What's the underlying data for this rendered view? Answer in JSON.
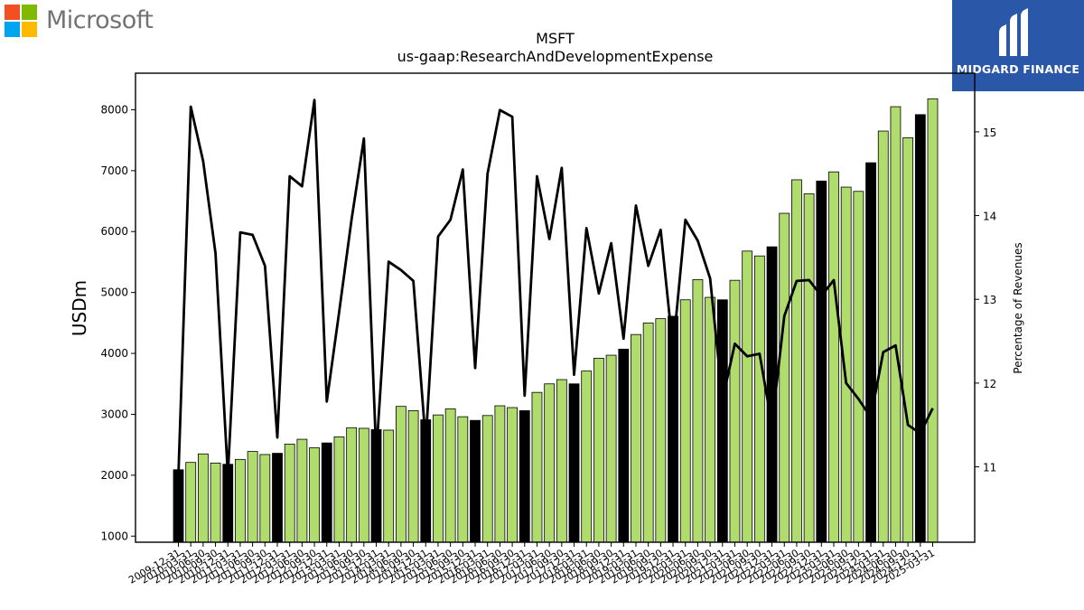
{
  "branding": {
    "left_logo_text": "Microsoft",
    "left_logo_colors": [
      "#f25022",
      "#7fba00",
      "#00a4ef",
      "#ffb900"
    ],
    "right_logo_text": "MIDGARD FINANCE",
    "right_logo_bg": "#2a57a8"
  },
  "chart_data": {
    "type": "bar",
    "title": "MSFT",
    "subtitle": "us-gaap:ResearchAndDevelopmentExpense",
    "ylabel": "USDm",
    "y2label": "Percentage of Revenues",
    "ylim": [
      900,
      8600
    ],
    "y2lim": [
      10.1,
      15.7
    ],
    "yticks": [
      1000,
      2000,
      3000,
      4000,
      5000,
      6000,
      7000,
      8000
    ],
    "y2ticks": [
      11,
      12,
      13,
      14,
      15
    ],
    "colors": {
      "quarter_bar": "#b0dc6e",
      "annual_bar": "#000000",
      "line": "#000000"
    },
    "categories": [
      "2009-12-31",
      "2010-03-31",
      "2010-06-30",
      "2010-09-30",
      "2010-12-31",
      "2011-03-31",
      "2011-06-30",
      "2011-09-30",
      "2011-12-31",
      "2012-03-31",
      "2012-06-30",
      "2012-09-30",
      "2012-12-31",
      "2013-03-31",
      "2013-06-30",
      "2013-09-30",
      "2013-12-31",
      "2014-03-31",
      "2014-06-30",
      "2014-09-30",
      "2014-12-31",
      "2015-03-31",
      "2015-06-30",
      "2015-09-30",
      "2015-12-31",
      "2016-03-31",
      "2016-06-30",
      "2016-09-30",
      "2016-12-31",
      "2017-03-31",
      "2017-06-30",
      "2017-09-30",
      "2017-12-31",
      "2018-03-31",
      "2018-06-30",
      "2018-09-30",
      "2018-12-31",
      "2019-03-31",
      "2019-06-30",
      "2019-09-30",
      "2019-12-31",
      "2020-03-31",
      "2020-06-30",
      "2020-09-30",
      "2020-12-31",
      "2021-03-31",
      "2021-06-30",
      "2021-09-30",
      "2021-12-31",
      "2022-03-31",
      "2022-06-30",
      "2022-09-30",
      "2022-12-31",
      "2023-03-31",
      "2023-06-30",
      "2023-09-30",
      "2023-12-31",
      "2024-03-31",
      "2024-06-30",
      "2024-09-30",
      "2024-12-31",
      "2025-03-31"
    ],
    "series": [
      {
        "values": [
          2090,
          2210,
          2350,
          2200,
          2180,
          2260,
          2390,
          2340,
          2360,
          2510,
          2590,
          2450,
          2530,
          2630,
          2780,
          2770,
          2750,
          2740,
          3130,
          3060,
          2910,
          2990,
          3090,
          2960,
          2900,
          2980,
          3140,
          3110,
          3060,
          3360,
          3500,
          3570,
          3500,
          3710,
          3920,
          3970,
          4070,
          4310,
          4500,
          4570,
          4610,
          4880,
          5210,
          4920,
          4880,
          5200,
          5680,
          5600,
          5750,
          6300,
          6850,
          6620,
          6830,
          6980,
          6730,
          6660,
          7130,
          7650,
          8050,
          7540,
          7920,
          8180
        ],
        "bar_kind": [
          "A",
          "Q",
          "Q",
          "Q",
          "A",
          "Q",
          "Q",
          "Q",
          "A",
          "Q",
          "Q",
          "Q",
          "A",
          "Q",
          "Q",
          "Q",
          "A",
          "Q",
          "Q",
          "Q",
          "A",
          "Q",
          "Q",
          "Q",
          "A",
          "Q",
          "Q",
          "Q",
          "A",
          "Q",
          "Q",
          "Q",
          "A",
          "Q",
          "Q",
          "Q",
          "A",
          "Q",
          "Q",
          "Q",
          "A",
          "Q",
          "Q",
          "Q",
          "A",
          "Q",
          "Q",
          "Q",
          "A",
          "Q",
          "Q",
          "Q",
          "A",
          "Q",
          "Q",
          "Q",
          "A",
          "Q",
          "Q",
          "Q",
          "A",
          "Q"
        ]
      },
      {
        "axis": "right",
        "values": [
          10.9,
          15.3,
          14.65,
          13.55,
          10.9,
          13.8,
          13.77,
          13.4,
          11.35,
          14.47,
          14.35,
          15.38,
          11.78,
          12.85,
          13.95,
          14.92,
          11.15,
          13.45,
          13.35,
          13.22,
          11.3,
          13.75,
          13.95,
          14.55,
          12.18,
          14.5,
          15.26,
          15.18,
          11.85,
          14.47,
          13.72,
          14.57,
          12.1,
          13.85,
          13.07,
          13.67,
          12.53,
          14.12,
          13.4,
          13.83,
          12.4,
          13.95,
          13.7,
          13.25,
          11.8,
          12.47,
          12.32,
          12.35,
          11.5,
          12.8,
          13.22,
          13.23,
          13.04,
          13.23,
          12.0,
          11.81,
          11.59,
          12.37,
          12.45,
          11.5,
          11.4,
          11.7
        ]
      }
    ]
  }
}
